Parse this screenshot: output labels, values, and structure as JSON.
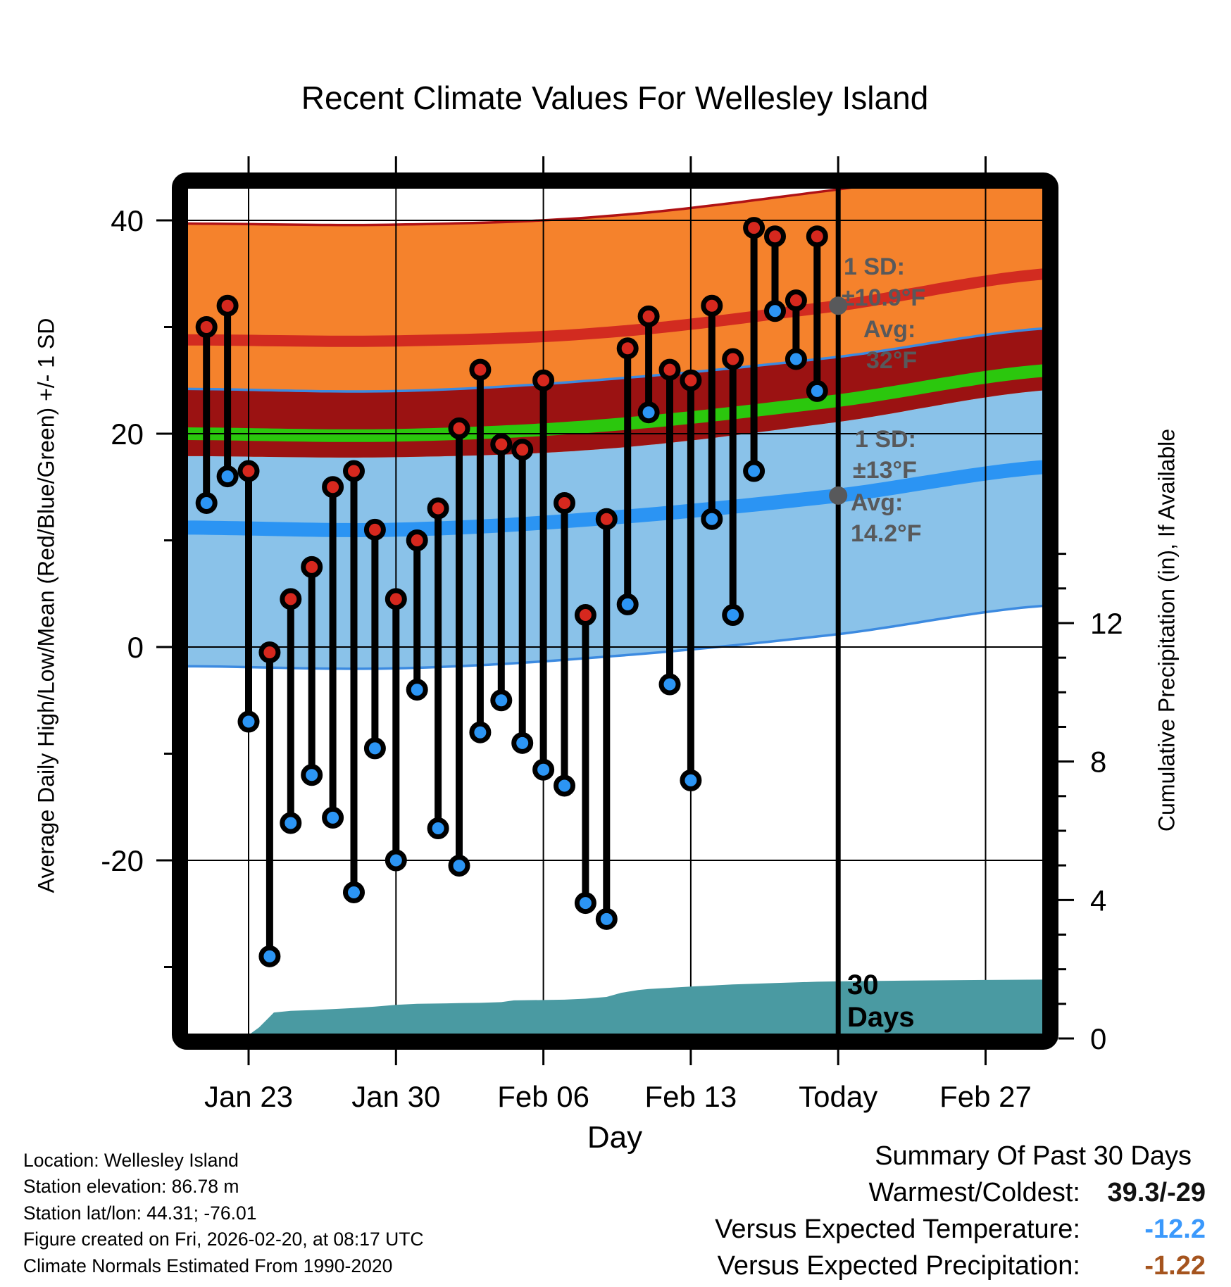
{
  "title": "Recent Climate Values For Wellesley Island",
  "axes": {
    "x_label": "Day",
    "y_left_label": "Average Daily High/Low/Mean (Red/Blue/Green) +/- 1 SD",
    "y_right_label": "Cumulative Precipitation (in), If Available",
    "x_ticks": [
      {
        "label": "Jan 23",
        "day": 3
      },
      {
        "label": "Jan 30",
        "day": 10
      },
      {
        "label": "Feb 06",
        "day": 17
      },
      {
        "label": "Feb 13",
        "day": 24
      },
      {
        "label": "Today",
        "day": 31
      },
      {
        "label": "Feb 27",
        "day": 38
      }
    ],
    "y_left_major_ticks": [
      40,
      20,
      0,
      -20
    ],
    "y_left_minor_ticks": [
      30,
      10,
      -10,
      -30
    ],
    "y_right_major_ticks": [
      12,
      8,
      4,
      0
    ],
    "y_right_minor_ticks": [
      1,
      2,
      3,
      5,
      6,
      7,
      9,
      10,
      11,
      13,
      14
    ]
  },
  "chart_data": {
    "type": "line",
    "title": "Recent Climate Values For Wellesley Island",
    "xlabel": "Day",
    "ylabel_left": "Average Daily High/Low/Mean (Red/Blue/Green) +/- 1 SD",
    "ylabel_right": "Cumulative Precipitation (in), If Available",
    "x_unit": "days, day 0 = Jan 20",
    "x_range": [
      0.05,
      40.75
    ],
    "y_left_range_F": [
      -36,
      43
    ],
    "y_right_range_in": [
      0,
      24
    ],
    "grid": true,
    "today_day": 31,
    "dates": [
      "Jan 21",
      "Jan 22",
      "Jan 23",
      "Jan 24",
      "Jan 25",
      "Jan 26",
      "Jan 27",
      "Jan 28",
      "Jan 29",
      "Jan 30",
      "Jan 31",
      "Feb 01",
      "Feb 02",
      "Feb 03",
      "Feb 04",
      "Feb 05",
      "Feb 06",
      "Feb 07",
      "Feb 08",
      "Feb 09",
      "Feb 10",
      "Feb 11",
      "Feb 12",
      "Feb 13",
      "Feb 14",
      "Feb 15",
      "Feb 16",
      "Feb 17",
      "Feb 18",
      "Feb 19"
    ],
    "day_index": [
      1,
      2,
      3,
      4,
      5,
      6,
      7,
      8,
      9,
      10,
      11,
      12,
      13,
      14,
      15,
      16,
      17,
      18,
      19,
      20,
      21,
      22,
      23,
      24,
      25,
      26,
      27,
      28,
      29,
      30
    ],
    "daily_high_F": [
      30,
      32,
      16.5,
      -0.5,
      4.5,
      7.5,
      15,
      16.5,
      11,
      4.5,
      10,
      13,
      20.5,
      26,
      19,
      18.5,
      25,
      13.5,
      3,
      12,
      28,
      31,
      26,
      25,
      32,
      27,
      39.3,
      38.5,
      32.5,
      38.5
    ],
    "daily_low_F": [
      13.5,
      16,
      -7,
      -29,
      -16.5,
      -12,
      -16,
      -23,
      -9.5,
      -20,
      -4,
      -17,
      -20.5,
      -8,
      -5,
      -9,
      -11.5,
      -13,
      -24,
      -25.5,
      4,
      22,
      -3.5,
      -12.5,
      12,
      3,
      16.5,
      31.5,
      27,
      24
    ],
    "normals": {
      "anchor_days": [
        0,
        10,
        20,
        31,
        41
      ],
      "avg_high_F": [
        28.8,
        28.7,
        29.5,
        32.0,
        35.0
      ],
      "avg_low_F": [
        11.2,
        11.0,
        12.1,
        14.2,
        16.9
      ],
      "sd_high_F": 10.9,
      "sd_low_F": 13.0
    },
    "cumulative_precip_in": {
      "days": [
        0.05,
        1,
        2,
        3,
        3.5,
        4.2,
        5,
        6,
        7,
        8,
        9,
        10,
        11,
        13,
        14,
        15,
        15.6,
        18,
        19,
        20,
        20.7,
        21.5,
        22,
        24,
        26,
        28,
        30,
        31,
        34,
        38,
        40.75
      ],
      "values": [
        0.02,
        0.03,
        0.05,
        0.1,
        0.32,
        0.75,
        0.8,
        0.82,
        0.85,
        0.88,
        0.92,
        0.97,
        1.0,
        1.02,
        1.03,
        1.05,
        1.1,
        1.12,
        1.15,
        1.2,
        1.32,
        1.4,
        1.43,
        1.5,
        1.56,
        1.6,
        1.64,
        1.65,
        1.67,
        1.69,
        1.7
      ]
    }
  },
  "annotations": {
    "high_sd_line1": "1 SD:",
    "high_sd_line2": "±10.9°F",
    "high_avg_line1": "Avg:",
    "high_avg_line2": "32°F",
    "high_avg_value": 32,
    "low_sd_line1": "1 SD:",
    "low_sd_line2": "±13°F",
    "low_avg_line1": "Avg:",
    "low_avg_line2": "14.2°F",
    "low_avg_value": 14.2,
    "precip_line1": "30",
    "precip_line2": "Days"
  },
  "footer": {
    "location": "Location: Wellesley Island",
    "elevation": "Station elevation: 86.78 m",
    "latlon": "Station lat/lon: 44.31; -76.01",
    "created": "Figure created on Fri, 2026-02-20, at 08:17 UTC",
    "normals": "Climate Normals Estimated From 1990-2020"
  },
  "summary": {
    "title": "Summary Of Past 30 Days",
    "rows": [
      {
        "label": "Warmest/Coldest:",
        "value": "39.3/-29",
        "color": "#111111"
      },
      {
        "label": "Versus Expected Temperature:",
        "value": "-12.2",
        "color": "#3B99FC"
      },
      {
        "label": "Versus Expected Precipitation:",
        "value": "-1.22",
        "color": "#A5541E"
      }
    ]
  },
  "colors": {
    "high_band": "#F5822C",
    "low_band": "#8AC2E9",
    "overlap_band": "#9B1212",
    "high_band_edge": "#B01215",
    "low_band_edge": "#3C8AE0",
    "avg_high_line": "#D22B20",
    "avg_low_line": "#2B94F3",
    "mean_line": "#2BC70D",
    "precip_fill": "#4A9AA2",
    "annotation_gray": "#58595B",
    "dot_high": "#D6281E",
    "dot_low": "#2C95F4",
    "stem": "#000000"
  }
}
